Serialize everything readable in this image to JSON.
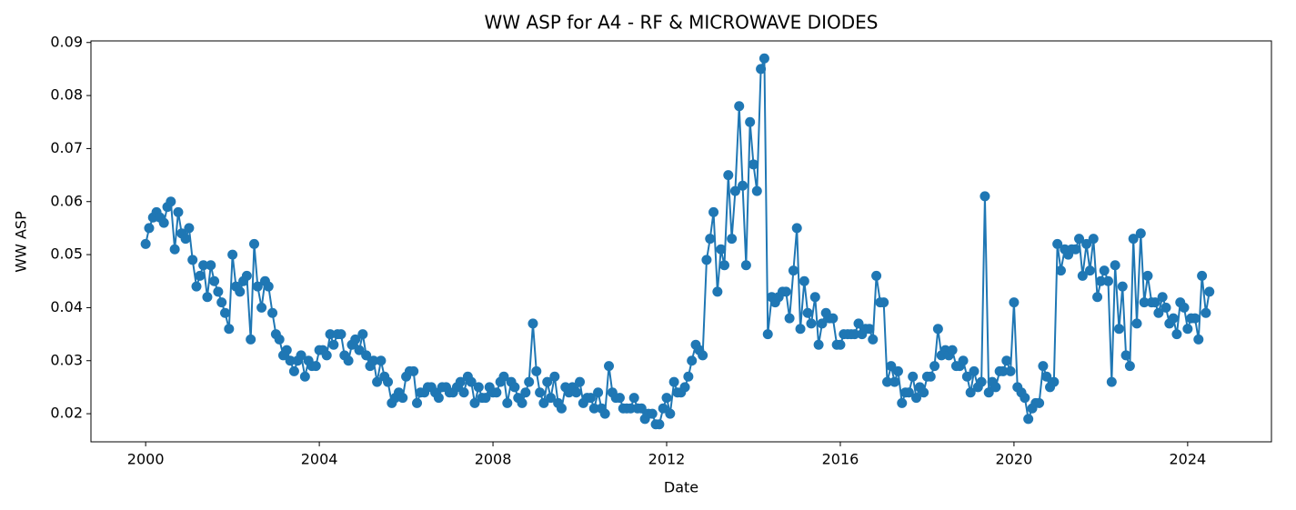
{
  "chart_data": {
    "type": "line",
    "title": "WW ASP for A4 - RF & MICROWAVE DIODES",
    "x_label": "Date",
    "y_label": "WW ASP",
    "color": "#1f77b4",
    "x": [
      2000.0,
      2000.08,
      2000.17,
      2000.25,
      2000.33,
      2000.42,
      2000.5,
      2000.58,
      2000.67,
      2000.75,
      2000.83,
      2000.92,
      2001.0,
      2001.08,
      2001.17,
      2001.25,
      2001.33,
      2001.42,
      2001.5,
      2001.58,
      2001.67,
      2001.75,
      2001.83,
      2001.92,
      2002.0,
      2002.08,
      2002.17,
      2002.25,
      2002.33,
      2002.42,
      2002.5,
      2002.58,
      2002.67,
      2002.75,
      2002.83,
      2002.92,
      2003.0,
      2003.08,
      2003.17,
      2003.25,
      2003.33,
      2003.42,
      2003.5,
      2003.58,
      2003.67,
      2003.75,
      2003.83,
      2003.92,
      2004.0,
      2004.08,
      2004.17,
      2004.25,
      2004.33,
      2004.42,
      2004.5,
      2004.58,
      2004.67,
      2004.75,
      2004.83,
      2004.92,
      2005.0,
      2005.08,
      2005.17,
      2005.25,
      2005.33,
      2005.42,
      2005.5,
      2005.58,
      2005.67,
      2005.75,
      2005.83,
      2005.92,
      2006.0,
      2006.08,
      2006.17,
      2006.25,
      2006.33,
      2006.42,
      2006.5,
      2006.58,
      2006.67,
      2006.75,
      2006.83,
      2006.92,
      2007.0,
      2007.08,
      2007.17,
      2007.25,
      2007.33,
      2007.42,
      2007.5,
      2007.58,
      2007.67,
      2007.75,
      2007.83,
      2007.92,
      2008.0,
      2008.08,
      2008.17,
      2008.25,
      2008.33,
      2008.42,
      2008.5,
      2008.58,
      2008.67,
      2008.75,
      2008.83,
      2008.92,
      2009.0,
      2009.08,
      2009.17,
      2009.25,
      2009.33,
      2009.42,
      2009.5,
      2009.58,
      2009.67,
      2009.75,
      2009.83,
      2009.92,
      2010.0,
      2010.08,
      2010.17,
      2010.25,
      2010.33,
      2010.42,
      2010.5,
      2010.58,
      2010.67,
      2010.75,
      2010.83,
      2010.92,
      2011.0,
      2011.08,
      2011.17,
      2011.25,
      2011.33,
      2011.42,
      2011.5,
      2011.58,
      2011.67,
      2011.75,
      2011.83,
      2011.92,
      2012.0,
      2012.08,
      2012.17,
      2012.25,
      2012.33,
      2012.42,
      2012.5,
      2012.58,
      2012.67,
      2012.75,
      2012.83,
      2012.92,
      2013.0,
      2013.08,
      2013.17,
      2013.25,
      2013.33,
      2013.42,
      2013.5,
      2013.58,
      2013.67,
      2013.75,
      2013.83,
      2013.92,
      2014.0,
      2014.08,
      2014.17,
      2014.25,
      2014.33,
      2014.42,
      2014.5,
      2014.58,
      2014.67,
      2014.75,
      2014.83,
      2014.92,
      2015.0,
      2015.08,
      2015.17,
      2015.25,
      2015.33,
      2015.42,
      2015.5,
      2015.58,
      2015.67,
      2015.75,
      2015.83,
      2015.92,
      2016.0,
      2016.08,
      2016.17,
      2016.25,
      2016.33,
      2016.42,
      2016.5,
      2016.58,
      2016.67,
      2016.75,
      2016.83,
      2016.92,
      2017.0,
      2017.08,
      2017.17,
      2017.25,
      2017.33,
      2017.42,
      2017.5,
      2017.58,
      2017.67,
      2017.75,
      2017.83,
      2017.92,
      2018.0,
      2018.08,
      2018.17,
      2018.25,
      2018.33,
      2018.42,
      2018.5,
      2018.58,
      2018.67,
      2018.75,
      2018.83,
      2018.92,
      2019.0,
      2019.08,
      2019.17,
      2019.25,
      2019.33,
      2019.42,
      2019.5,
      2019.58,
      2019.67,
      2019.75,
      2019.83,
      2019.92,
      2020.0,
      2020.08,
      2020.17,
      2020.25,
      2020.33,
      2020.42,
      2020.5,
      2020.58,
      2020.67,
      2020.75,
      2020.83,
      2020.92,
      2021.0,
      2021.08,
      2021.17,
      2021.25,
      2021.33,
      2021.42,
      2021.5,
      2021.58,
      2021.67,
      2021.75,
      2021.83,
      2021.92,
      2022.0,
      2022.08,
      2022.17,
      2022.25,
      2022.33,
      2022.42,
      2022.5,
      2022.58,
      2022.67,
      2022.75,
      2022.83,
      2022.92,
      2023.0,
      2023.08,
      2023.17,
      2023.25,
      2023.33,
      2023.42,
      2023.5,
      2023.58,
      2023.67,
      2023.75,
      2023.83,
      2023.92,
      2024.0,
      2024.08,
      2024.17,
      2024.25,
      2024.33,
      2024.42,
      2024.5
    ],
    "values": [
      0.052,
      0.055,
      0.057,
      0.058,
      0.057,
      0.056,
      0.059,
      0.06,
      0.051,
      0.058,
      0.054,
      0.053,
      0.055,
      0.049,
      0.044,
      0.046,
      0.048,
      0.042,
      0.048,
      0.045,
      0.043,
      0.041,
      0.039,
      0.036,
      0.05,
      0.044,
      0.043,
      0.045,
      0.046,
      0.034,
      0.052,
      0.044,
      0.04,
      0.045,
      0.044,
      0.039,
      0.035,
      0.034,
      0.031,
      0.032,
      0.03,
      0.028,
      0.03,
      0.031,
      0.027,
      0.03,
      0.029,
      0.029,
      0.032,
      0.032,
      0.031,
      0.035,
      0.033,
      0.035,
      0.035,
      0.031,
      0.03,
      0.033,
      0.034,
      0.032,
      0.035,
      0.031,
      0.029,
      0.03,
      0.026,
      0.03,
      0.027,
      0.026,
      0.022,
      0.023,
      0.024,
      0.023,
      0.027,
      0.028,
      0.028,
      0.022,
      0.024,
      0.024,
      0.025,
      0.025,
      0.024,
      0.023,
      0.025,
      0.025,
      0.024,
      0.024,
      0.025,
      0.026,
      0.024,
      0.027,
      0.026,
      0.022,
      0.025,
      0.023,
      0.023,
      0.025,
      0.024,
      0.024,
      0.026,
      0.027,
      0.022,
      0.026,
      0.025,
      0.023,
      0.022,
      0.024,
      0.026,
      0.037,
      0.028,
      0.024,
      0.022,
      0.026,
      0.023,
      0.027,
      0.022,
      0.021,
      0.025,
      0.024,
      0.025,
      0.024,
      0.026,
      0.022,
      0.023,
      0.023,
      0.021,
      0.024,
      0.021,
      0.02,
      0.029,
      0.024,
      0.023,
      0.023,
      0.021,
      0.021,
      0.021,
      0.023,
      0.021,
      0.021,
      0.019,
      0.02,
      0.02,
      0.018,
      0.018,
      0.021,
      0.023,
      0.02,
      0.026,
      0.024,
      0.024,
      0.025,
      0.027,
      0.03,
      0.033,
      0.032,
      0.031,
      0.049,
      0.053,
      0.058,
      0.043,
      0.051,
      0.048,
      0.065,
      0.053,
      0.062,
      0.078,
      0.063,
      0.048,
      0.075,
      0.067,
      0.062,
      0.085,
      0.087,
      0.035,
      0.042,
      0.041,
      0.042,
      0.043,
      0.043,
      0.038,
      0.047,
      0.055,
      0.036,
      0.045,
      0.039,
      0.037,
      0.042,
      0.033,
      0.037,
      0.039,
      0.038,
      0.038,
      0.033,
      0.033,
      0.035,
      0.035,
      0.035,
      0.035,
      0.037,
      0.035,
      0.036,
      0.036,
      0.034,
      0.046,
      0.041,
      0.041,
      0.026,
      0.029,
      0.026,
      0.028,
      0.022,
      0.024,
      0.024,
      0.027,
      0.023,
      0.025,
      0.024,
      0.027,
      0.027,
      0.029,
      0.036,
      0.031,
      0.032,
      0.031,
      0.032,
      0.029,
      0.029,
      0.03,
      0.027,
      0.024,
      0.028,
      0.025,
      0.026,
      0.061,
      0.024,
      0.026,
      0.025,
      0.028,
      0.028,
      0.03,
      0.028,
      0.041,
      0.025,
      0.024,
      0.023,
      0.019,
      0.021,
      0.022,
      0.022,
      0.029,
      0.027,
      0.025,
      0.026,
      0.052,
      0.047,
      0.051,
      0.05,
      0.051,
      0.051,
      0.053,
      0.046,
      0.052,
      0.047,
      0.053,
      0.042,
      0.045,
      0.047,
      0.045,
      0.026,
      0.048,
      0.036,
      0.044,
      0.031,
      0.029,
      0.053,
      0.037,
      0.054,
      0.041,
      0.046,
      0.041,
      0.041,
      0.039,
      0.042,
      0.04,
      0.037,
      0.038,
      0.035,
      0.041,
      0.04,
      0.036,
      0.038,
      0.038,
      0.034,
      0.046,
      0.039,
      0.043
    ],
    "xlim": [
      1998.74,
      2025.93
    ],
    "xticks": [
      2000,
      2004,
      2008,
      2012,
      2016,
      2020,
      2024
    ],
    "ylim": [
      0.0147,
      0.0903
    ],
    "yticks": [
      0.02,
      0.03,
      0.04,
      0.05,
      0.06,
      0.07,
      0.08,
      0.09
    ],
    "markers": true,
    "grid": false
  }
}
